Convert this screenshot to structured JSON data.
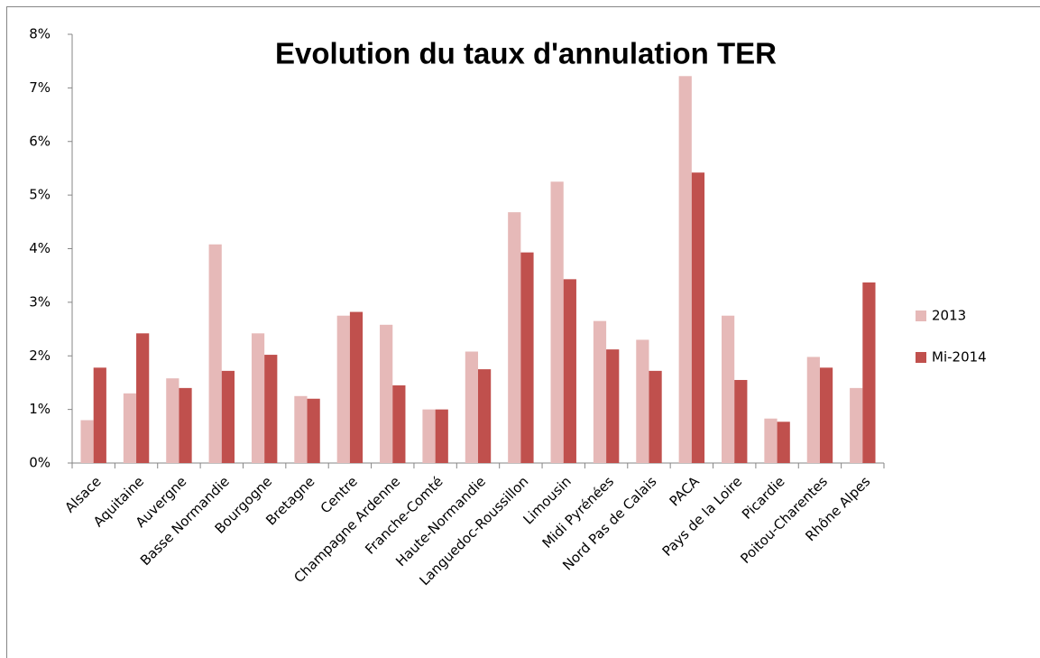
{
  "chart_data": {
    "type": "bar",
    "title": "Evolution du taux d'annulation TER",
    "categories": [
      "Alsace",
      "Aquitaine",
      "Auvergne",
      "Basse Normandie",
      "Bourgogne",
      "Bretagne",
      "Centre",
      "Champagne Ardenne",
      "Franche-Comté",
      "Haute-Normandie",
      "Languedoc-Roussillon",
      "Limousin",
      "Midi Pyrénées",
      "Nord Pas de Calais",
      "PACA",
      "Pays de la Loire",
      "Picardie",
      "Poitou-Charentes",
      "Rhône Alpes"
    ],
    "series": [
      {
        "name": "2013",
        "color": "#e6b9b8",
        "values": [
          0.8,
          1.3,
          1.58,
          4.08,
          2.42,
          1.25,
          2.75,
          2.58,
          1.0,
          2.08,
          4.68,
          5.25,
          2.65,
          2.3,
          7.22,
          2.75,
          0.83,
          1.98,
          1.4
        ]
      },
      {
        "name": "Mi-2014",
        "color": "#c0504d",
        "values": [
          1.78,
          2.42,
          1.4,
          1.72,
          2.02,
          1.2,
          2.82,
          1.45,
          1.0,
          1.75,
          3.93,
          3.43,
          2.12,
          1.72,
          5.42,
          1.55,
          0.77,
          1.78,
          3.37
        ]
      }
    ],
    "ylim": [
      0,
      8
    ],
    "yticks": [
      {
        "value": 0,
        "label": "0%"
      },
      {
        "value": 1,
        "label": "1%"
      },
      {
        "value": 2,
        "label": "2%"
      },
      {
        "value": 3,
        "label": "3%"
      },
      {
        "value": 4,
        "label": "4%"
      },
      {
        "value": 5,
        "label": "5%"
      },
      {
        "value": 6,
        "label": "6%"
      },
      {
        "value": 7,
        "label": "7%"
      },
      {
        "value": 8,
        "label": "8%"
      }
    ],
    "legend": "right"
  }
}
